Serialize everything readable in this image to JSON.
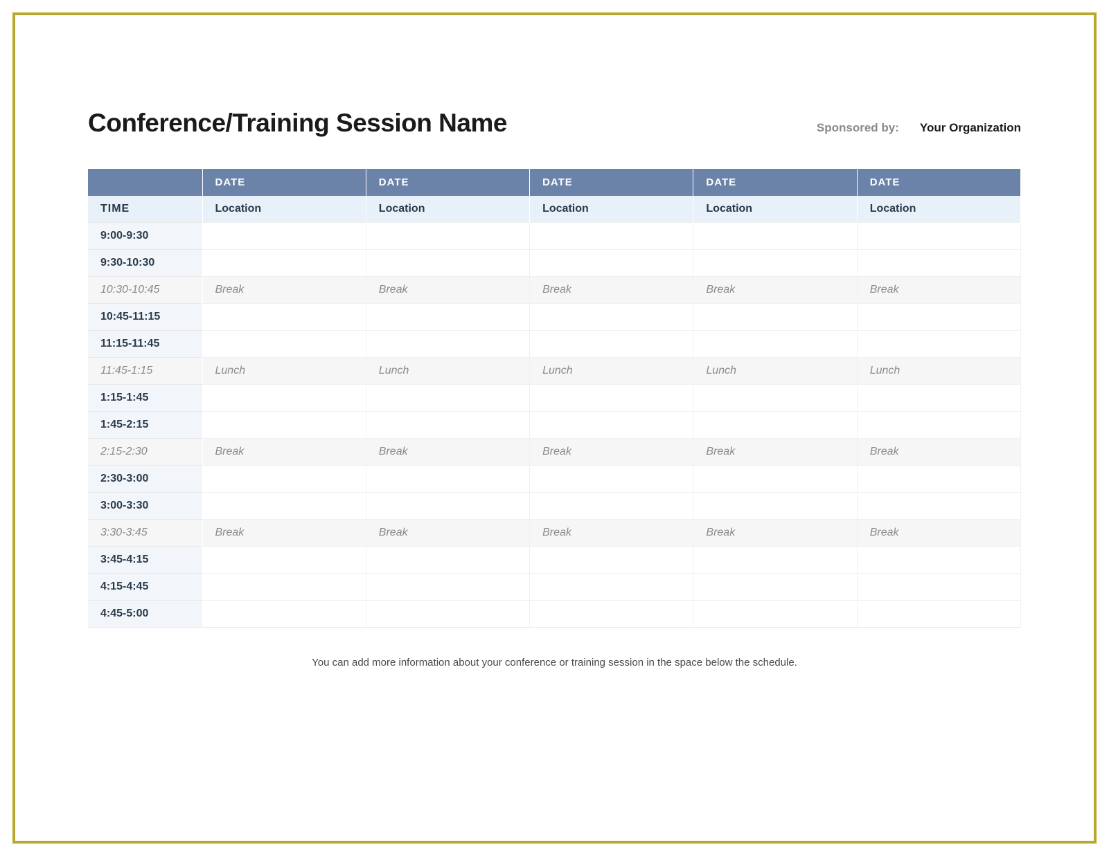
{
  "header": {
    "title": "Conference/Training Session Name",
    "sponsor_label": "Sponsored by:",
    "sponsor_org": "Your Organization"
  },
  "table": {
    "time_header": "TIME",
    "date_headers": [
      "DATE",
      "DATE",
      "DATE",
      "DATE",
      "DATE"
    ],
    "location_labels": [
      "Location",
      "Location",
      "Location",
      "Location",
      "Location"
    ],
    "rows": [
      {
        "time": "9:00-9:30",
        "type": "session",
        "cells": [
          "",
          "",
          "",
          "",
          ""
        ]
      },
      {
        "time": "9:30-10:30",
        "type": "session",
        "cells": [
          "",
          "",
          "",
          "",
          ""
        ]
      },
      {
        "time": "10:30-10:45",
        "type": "break",
        "cells": [
          "Break",
          "Break",
          "Break",
          "Break",
          "Break"
        ]
      },
      {
        "time": "10:45-11:15",
        "type": "session",
        "cells": [
          "",
          "",
          "",
          "",
          ""
        ]
      },
      {
        "time": "11:15-11:45",
        "type": "session",
        "cells": [
          "",
          "",
          "",
          "",
          ""
        ]
      },
      {
        "time": "11:45-1:15",
        "type": "break",
        "cells": [
          "Lunch",
          "Lunch",
          "Lunch",
          "Lunch",
          "Lunch"
        ]
      },
      {
        "time": "1:15-1:45",
        "type": "session",
        "cells": [
          "",
          "",
          "",
          "",
          ""
        ]
      },
      {
        "time": "1:45-2:15",
        "type": "session",
        "cells": [
          "",
          "",
          "",
          "",
          ""
        ]
      },
      {
        "time": "2:15-2:30",
        "type": "break",
        "cells": [
          "Break",
          "Break",
          "Break",
          "Break",
          "Break"
        ]
      },
      {
        "time": "2:30-3:00",
        "type": "session",
        "cells": [
          "",
          "",
          "",
          "",
          ""
        ]
      },
      {
        "time": "3:00-3:30",
        "type": "session",
        "cells": [
          "",
          "",
          "",
          "",
          ""
        ]
      },
      {
        "time": "3:30-3:45",
        "type": "break",
        "cells": [
          "Break",
          "Break",
          "Break",
          "Break",
          "Break"
        ]
      },
      {
        "time": "3:45-4:15",
        "type": "session",
        "cells": [
          "",
          "",
          "",
          "",
          ""
        ]
      },
      {
        "time": "4:15-4:45",
        "type": "session",
        "cells": [
          "",
          "",
          "",
          "",
          ""
        ]
      },
      {
        "time": "4:45-5:00",
        "type": "session",
        "cells": [
          "",
          "",
          "",
          "",
          ""
        ]
      }
    ]
  },
  "footer_note": "You can add more information about your conference or training session in the space below the schedule.",
  "styling": {
    "frame_border_color": "#b8a830",
    "date_header_bg": "#6b83a8",
    "time_header_bg": "#7e95ba",
    "location_row_bg": "#e8f1f9",
    "time_cell_bg": "#f2f6fb",
    "break_bg": "#f6f6f6",
    "header_text_color": "#ffffff",
    "body_text_color": "#2a3a4a",
    "muted_text_color": "#8a8a8a",
    "title_font_size": 37,
    "cell_font_size": 16,
    "header_font_size": 15
  }
}
